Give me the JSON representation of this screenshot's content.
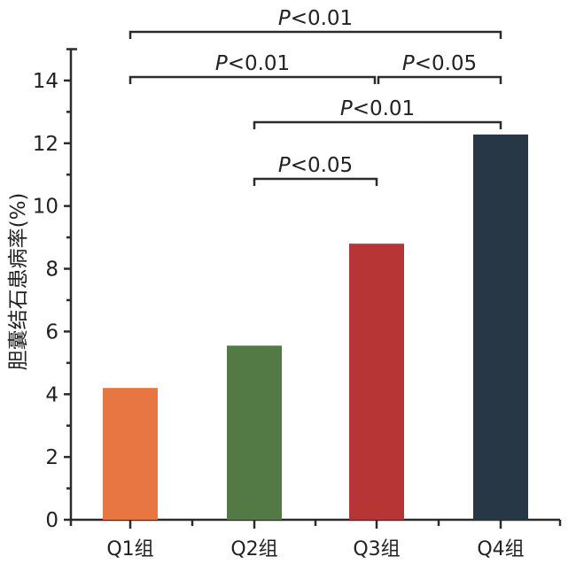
{
  "chart_data": {
    "type": "bar",
    "categories": [
      "Q1组",
      "Q2组",
      "Q3组",
      "Q4组"
    ],
    "values": [
      4.2,
      5.55,
      8.8,
      12.28
    ],
    "colors": [
      "#E87642",
      "#537A44",
      "#B83535",
      "#273746"
    ],
    "title": "",
    "xlabel": "",
    "ylabel": "胆囊结石患病率(%)",
    "ylim": [
      0,
      15
    ],
    "yticks": [
      0,
      2,
      4,
      6,
      8,
      10,
      12,
      14
    ],
    "grid": false,
    "significance": [
      {
        "from": 0,
        "to": 3,
        "p_italic": "P",
        "label": "<0.01"
      },
      {
        "from": 0,
        "to": 2,
        "p_italic": "P",
        "label": "<0.01"
      },
      {
        "from": 2,
        "to": 3,
        "p_italic": "P",
        "label": "<0.05"
      },
      {
        "from": 1,
        "to": 3,
        "p_italic": "P",
        "label": "<0.01"
      },
      {
        "from": 1,
        "to": 2,
        "p_italic": "P",
        "label": "<0.05"
      }
    ]
  }
}
